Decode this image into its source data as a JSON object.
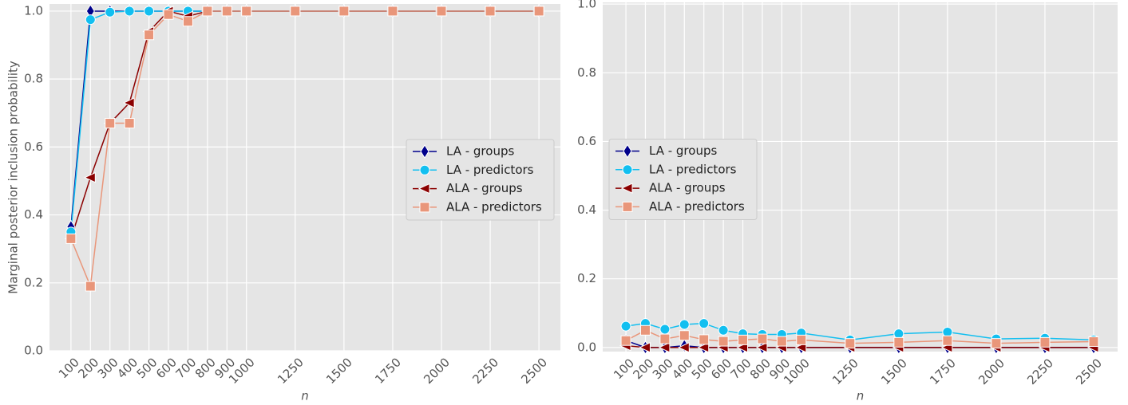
{
  "chart_data": [
    {
      "type": "line",
      "ylabel": "Marginal posterior inclusion probability",
      "xlabel": "n",
      "x": [
        100,
        200,
        300,
        400,
        500,
        600,
        700,
        800,
        900,
        1000,
        1250,
        1500,
        1750,
        2000,
        2250,
        2500
      ],
      "xlim": [
        -10,
        2610
      ],
      "xticks": [
        100,
        200,
        300,
        400,
        500,
        600,
        700,
        800,
        900,
        1000,
        1250,
        1500,
        1750,
        2000,
        2250,
        2500
      ],
      "ylim": [
        0,
        1.021
      ],
      "yticks": [
        {
          "value": 0,
          "label": "0.0"
        },
        0.2,
        0.4,
        0.6,
        0.8,
        {
          "value": 1,
          "label": "1.0"
        }
      ],
      "grid": true,
      "legend": "center right",
      "series": [
        {
          "name": "LA - groups",
          "color": "#00008b",
          "marker": "diamond",
          "values": [
            0.365,
            1,
            1,
            1,
            1,
            1,
            1,
            1,
            1,
            1,
            1,
            1,
            1,
            1,
            1,
            1
          ]
        },
        {
          "name": "LA - predictors",
          "color": "#12bff0",
          "marker": "circle",
          "values": [
            0.35,
            0.975,
            0.997,
            1,
            1,
            1,
            1,
            1,
            1,
            1,
            1,
            1,
            1,
            1,
            1,
            1
          ]
        },
        {
          "name": "ALA - groups",
          "color": "#8b0000",
          "marker": "triangle-left",
          "values": [
            0.33,
            0.51,
            0.67,
            0.73,
            0.94,
            1,
            0.985,
            1,
            1,
            1,
            1,
            1,
            1,
            1,
            1,
            1
          ]
        },
        {
          "name": "ALA - predictors",
          "color": "#e9967a",
          "marker": "square",
          "values": [
            0.33,
            0.19,
            0.67,
            0.67,
            0.93,
            0.99,
            0.97,
            1,
            1,
            1,
            1,
            1,
            1,
            1,
            1,
            1
          ]
        }
      ]
    },
    {
      "type": "line",
      "xlabel": "n",
      "x": [
        100,
        200,
        300,
        400,
        500,
        600,
        700,
        800,
        900,
        1000,
        1250,
        1500,
        1750,
        2000,
        2250,
        2500
      ],
      "xlim": [
        -19,
        2623
      ],
      "xticks": [
        100,
        200,
        300,
        400,
        500,
        600,
        700,
        800,
        900,
        1000,
        1250,
        1500,
        1750,
        2000,
        2250,
        2500
      ],
      "ylim": [
        -0.012,
        1.005
      ],
      "yticks": [
        {
          "value": 0,
          "label": "0.0"
        },
        0.2,
        0.4,
        0.6,
        0.8,
        {
          "value": 1,
          "label": "1.0"
        }
      ],
      "grid": true,
      "legend": "center left",
      "series": [
        {
          "name": "LA - groups",
          "color": "#00008b",
          "marker": "diamond",
          "values": [
            0.02,
            0,
            0,
            0.005,
            0,
            0,
            0,
            0,
            0,
            0,
            0,
            0,
            0,
            0,
            0,
            0
          ]
        },
        {
          "name": "LA - predictors",
          "color": "#12bff0",
          "marker": "circle",
          "values": [
            0.062,
            0.07,
            0.053,
            0.067,
            0.07,
            0.05,
            0.04,
            0.038,
            0.038,
            0.042,
            0.022,
            0.04,
            0.045,
            0.025,
            0.027,
            0.022
          ]
        },
        {
          "name": "ALA - groups",
          "color": "#8b0000",
          "marker": "triangle-left",
          "values": [
            0.005,
            0,
            0,
            0,
            0,
            0,
            0,
            0,
            0,
            0,
            0,
            0,
            0,
            0,
            0,
            0
          ]
        },
        {
          "name": "ALA - predictors",
          "color": "#e9967a",
          "marker": "square",
          "values": [
            0.02,
            0.05,
            0.025,
            0.035,
            0.023,
            0.018,
            0.022,
            0.025,
            0.018,
            0.022,
            0.012,
            0.015,
            0.02,
            0.012,
            0.015,
            0.017
          ]
        }
      ]
    }
  ]
}
